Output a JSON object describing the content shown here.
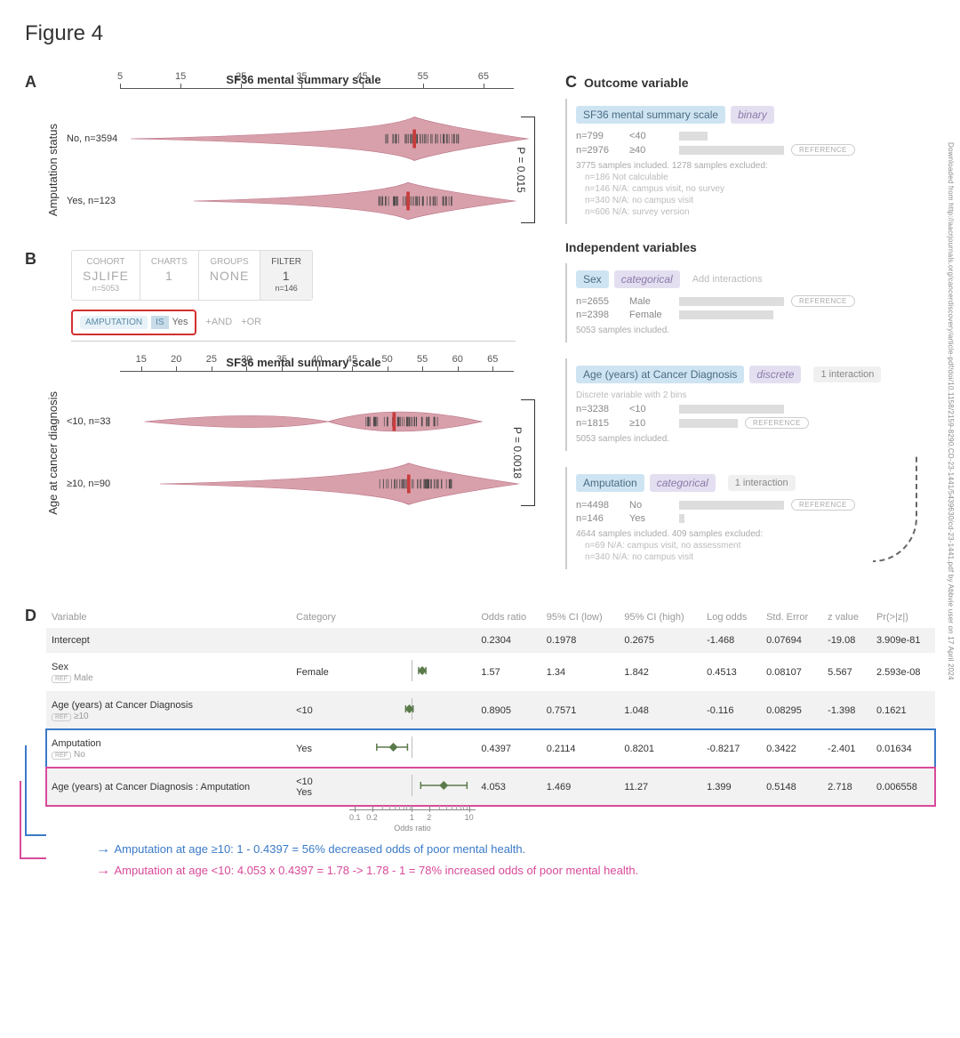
{
  "figure_title": "Figure 4",
  "panelA": {
    "letter": "A",
    "title": "SF36 mental summary scale",
    "side_label": "Amputation status",
    "axis": {
      "min": 5,
      "max": 70,
      "ticks": [
        5,
        15,
        25,
        35,
        45,
        55,
        65
      ]
    },
    "rows": [
      {
        "label": "No, n=3594",
        "peak": 50,
        "spread_lo": 5,
        "spread_hi": 68,
        "height": 1.0
      },
      {
        "label": "Yes, n=123",
        "peak": 49,
        "spread_lo": 15,
        "spread_hi": 66,
        "height": 0.85
      }
    ],
    "pvalue": "P = 0.015",
    "violin_color": "#d8a0ab",
    "violin_stroke": "#b86f82",
    "median_color": "#c83c3c"
  },
  "panelB": {
    "letter": "B",
    "filter_cells": [
      {
        "top": "COHORT",
        "mid": "SJLIFE",
        "bot": "n=5053",
        "active": false
      },
      {
        "top": "CHARTS",
        "mid": "1",
        "bot": "",
        "active": false
      },
      {
        "top": "GROUPS",
        "mid": "NONE",
        "bot": "",
        "active": false
      },
      {
        "top": "FILTER",
        "mid": "1",
        "bot": "n=146",
        "active": true
      }
    ],
    "query": {
      "var": "AMPUTATION",
      "op": "IS",
      "val": "Yes"
    },
    "and": "+AND",
    "or": "+OR",
    "chart": {
      "title": "SF36 mental summary scale",
      "side_label": "Age at cancer diagnosis",
      "axis": {
        "min": 12,
        "max": 68,
        "ticks": [
          15,
          20,
          25,
          30,
          35,
          40,
          45,
          50,
          55,
          60,
          65
        ]
      },
      "rows": [
        {
          "label": "<10, n=33",
          "peak": 48,
          "spread_lo": 14,
          "spread_hi": 60,
          "height": 0.9,
          "bimodal_peak2": 30
        },
        {
          "label": "≥10, n=90",
          "peak": 50,
          "spread_lo": 16,
          "spread_hi": 65,
          "height": 0.95
        }
      ],
      "pvalue": "P = 0.0018"
    }
  },
  "panelC": {
    "letter": "C",
    "outcome_hdr": "Outcome variable",
    "indep_hdr": "Independent variables",
    "cards": [
      {
        "title": "SF36 mental summary scale",
        "type": "binary",
        "rows": [
          {
            "n": "n=799",
            "label": "<40",
            "bar": 32,
            "ref": false
          },
          {
            "n": "n=2976",
            "label": "≥40",
            "bar": 118,
            "ref": true
          }
        ],
        "foot": "3775 samples included. 1278 samples excluded:",
        "excl": [
          {
            "n": "n=186",
            "t": "Not calculable"
          },
          {
            "n": "n=146",
            "t": "N/A: campus visit, no survey"
          },
          {
            "n": "n=340",
            "t": "N/A: no campus visit"
          },
          {
            "n": "n=606",
            "t": "N/A: survey version"
          }
        ]
      },
      {
        "title": "Sex",
        "type": "categorical",
        "add_int": "Add interactions",
        "rows": [
          {
            "n": "n=2655",
            "label": "Male",
            "bar": 118,
            "ref": true
          },
          {
            "n": "n=2398",
            "label": "Female",
            "bar": 106,
            "ref": false
          }
        ],
        "foot": "5053 samples included."
      },
      {
        "title": "Age (years) at Cancer Diagnosis",
        "type": "discrete",
        "interaction": "1 interaction",
        "desc": "Discrete variable with 2 bins",
        "rows": [
          {
            "n": "n=3238",
            "label": "<10",
            "bar": 118,
            "ref": false
          },
          {
            "n": "n=1815",
            "label": "≥10",
            "bar": 66,
            "ref": true
          }
        ],
        "foot": "5053 samples included."
      },
      {
        "title": "Amputation",
        "type": "categorical",
        "interaction": "1 interaction",
        "rows": [
          {
            "n": "n=4498",
            "label": "No",
            "bar": 118,
            "ref": true
          },
          {
            "n": "n=146",
            "label": "Yes",
            "bar": 6,
            "ref": false
          }
        ],
        "foot": "4644 samples included. 409 samples excluded:",
        "excl": [
          {
            "n": "n=69",
            "t": "N/A: campus visit, no assessment"
          },
          {
            "n": "n=340",
            "t": "N/A: no campus visit"
          }
        ]
      }
    ]
  },
  "panelD": {
    "letter": "D",
    "headers": [
      "Variable",
      "Category",
      "",
      "Odds ratio",
      "95% CI (low)",
      "95% CI (high)",
      "Log odds",
      "Std. Error",
      "z value",
      "Pr(>|z|)"
    ],
    "axis": {
      "ticks": [
        0.1,
        0.2,
        1,
        2,
        10
      ],
      "label": "Odds ratio",
      "log_min": 0.08,
      "log_max": 13
    },
    "rows": [
      {
        "var": "Intercept",
        "ref": "",
        "cat": "",
        "or": "0.2304",
        "lo": "0.1978",
        "hi": "0.2675",
        "log": "-1.468",
        "se": "0.07694",
        "z": "-19.08",
        "p": "3.909e-81",
        "shade": true,
        "forest": null
      },
      {
        "var": "Sex",
        "ref": "Male",
        "cat": "Female",
        "or": "1.57",
        "lo": "1.34",
        "hi": "1.842",
        "log": "0.4513",
        "se": "0.08107",
        "z": "5.567",
        "p": "2.593e-08",
        "shade": false,
        "forest": {
          "pt": 1.57,
          "lo": 1.34,
          "hi": 1.842
        }
      },
      {
        "var": "Age (years) at Cancer Diagnosis",
        "ref": "≥10",
        "cat": "<10",
        "or": "0.8905",
        "lo": "0.7571",
        "hi": "1.048",
        "log": "-0.116",
        "se": "0.08295",
        "z": "-1.398",
        "p": "0.1621",
        "shade": true,
        "forest": {
          "pt": 0.8905,
          "lo": 0.7571,
          "hi": 1.048
        }
      },
      {
        "var": "Amputation",
        "ref": "No",
        "cat": "Yes",
        "or": "0.4397",
        "lo": "0.2114",
        "hi": "0.8201",
        "log": "-0.8217",
        "se": "0.3422",
        "z": "-2.401",
        "p": "0.01634",
        "shade": false,
        "forest": {
          "pt": 0.4397,
          "lo": 0.2114,
          "hi": 0.8201
        },
        "hl": "blue"
      },
      {
        "var": "Age (years) at Cancer Diagnosis : Amputation",
        "ref": "",
        "cat": "<10\nYes",
        "or": "4.053",
        "lo": "1.469",
        "hi": "11.27",
        "log": "1.399",
        "se": "0.5148",
        "z": "2.718",
        "p": "0.006558",
        "shade": true,
        "forest": {
          "pt": 4.053,
          "lo": 1.469,
          "hi": 11.27
        },
        "hl": "pink"
      }
    ],
    "interp_blue": "Amputation at age ≥10: 1 - 0.4397 = 56% decreased odds of poor mental health.",
    "interp_pink": "Amputation at age <10: 4.053 x 0.4397 = 1.78 -> 1.78 - 1 = 78% increased odds of poor mental health.",
    "forest_color": "#5a7a4a"
  },
  "watermark": "Downloaded from http://aacrjournals.org/cancerdiscovery/article-pdf/doi/10.1158/2159-8290.CD-23-1441/5439630/cd-23-1441.pdf by Abbvie user on 17 April 2024"
}
